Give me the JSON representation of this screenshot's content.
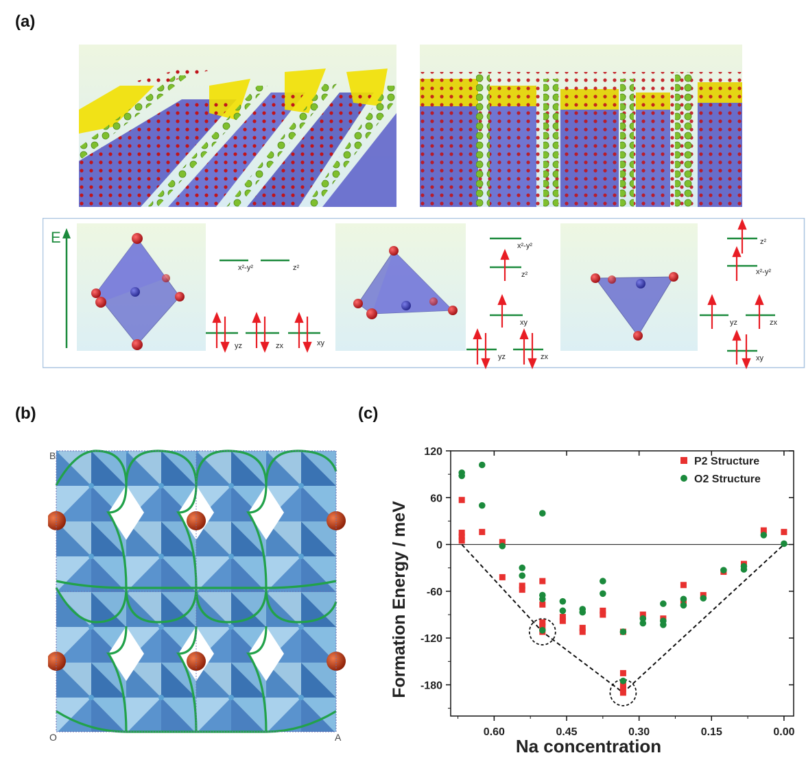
{
  "panels": {
    "a": "(a)",
    "b": "(b)",
    "c": "(c)"
  },
  "energy_diagram": {
    "axis_label": "E",
    "octahedral": [
      "x²-y²",
      "z²",
      "yz",
      "zx",
      "xy"
    ],
    "tetrahedral": [
      "x²-y²",
      "z²",
      "xy",
      "yz",
      "zx"
    ],
    "trigonal": [
      "z²",
      "x²-y²",
      "yz",
      "zx",
      "xy"
    ]
  },
  "lattice": {
    "corner_b": "B",
    "corner_o": "O",
    "corner_a": "A"
  },
  "colors": {
    "p2": "#e8312f",
    "o2": "#1b8a3c",
    "octahedra": "#5b5fc7",
    "yellow": "#f2e000",
    "green_line": "#22a24a",
    "na_ball": "#d0401a"
  },
  "chart_data": {
    "type": "scatter",
    "title": "",
    "xlabel": "Na concentration",
    "ylabel": "Formation Energy / meV",
    "xlim": [
      0.69,
      -0.02
    ],
    "ylim": [
      -220,
      120
    ],
    "xticks": [
      "0.60",
      "0.45",
      "0.30",
      "0.15",
      "0.00"
    ],
    "xtick_values": [
      0.6,
      0.45,
      0.3,
      0.15,
      0.0
    ],
    "yticks": [
      "120",
      "60",
      "0",
      "-60",
      "-120",
      "-180"
    ],
    "ytick_values": [
      120,
      60,
      0,
      -60,
      -120,
      -180
    ],
    "legend": [
      "P2 Structure",
      "O2 Structure"
    ],
    "series": [
      {
        "name": "P2 Structure",
        "points": [
          [
            0.667,
            57
          ],
          [
            0.667,
            15
          ],
          [
            0.667,
            10
          ],
          [
            0.667,
            5
          ],
          [
            0.625,
            16
          ],
          [
            0.583,
            3
          ],
          [
            0.583,
            -42
          ],
          [
            0.542,
            -53
          ],
          [
            0.542,
            -58
          ],
          [
            0.5,
            -47
          ],
          [
            0.5,
            -77
          ],
          [
            0.5,
            -100
          ],
          [
            0.5,
            -105
          ],
          [
            0.5,
            -112
          ],
          [
            0.458,
            -93
          ],
          [
            0.458,
            -98
          ],
          [
            0.417,
            -107
          ],
          [
            0.417,
            -112
          ],
          [
            0.375,
            -85
          ],
          [
            0.375,
            -90
          ],
          [
            0.333,
            -165
          ],
          [
            0.333,
            -180
          ],
          [
            0.333,
            -185
          ],
          [
            0.333,
            -190
          ],
          [
            0.333,
            -112
          ],
          [
            0.292,
            -90
          ],
          [
            0.25,
            -95
          ],
          [
            0.208,
            -52
          ],
          [
            0.208,
            -75
          ],
          [
            0.167,
            -65
          ],
          [
            0.125,
            -35
          ],
          [
            0.083,
            -25
          ],
          [
            0.042,
            18
          ],
          [
            0.0,
            16
          ]
        ]
      },
      {
        "name": "O2 Structure",
        "points": [
          [
            0.667,
            92
          ],
          [
            0.667,
            88
          ],
          [
            0.625,
            102
          ],
          [
            0.625,
            50
          ],
          [
            0.583,
            -2
          ],
          [
            0.542,
            -30
          ],
          [
            0.542,
            -40
          ],
          [
            0.5,
            40
          ],
          [
            0.5,
            -65
          ],
          [
            0.5,
            -70
          ],
          [
            0.5,
            -110
          ],
          [
            0.458,
            -73
          ],
          [
            0.458,
            -85
          ],
          [
            0.417,
            -83
          ],
          [
            0.417,
            -87
          ],
          [
            0.375,
            -47
          ],
          [
            0.375,
            -63
          ],
          [
            0.333,
            -112
          ],
          [
            0.333,
            -175
          ],
          [
            0.292,
            -95
          ],
          [
            0.292,
            -101
          ],
          [
            0.25,
            -76
          ],
          [
            0.25,
            -98
          ],
          [
            0.25,
            -103
          ],
          [
            0.208,
            -70
          ],
          [
            0.208,
            -78
          ],
          [
            0.167,
            -69
          ],
          [
            0.125,
            -33
          ],
          [
            0.083,
            -28
          ],
          [
            0.083,
            -32
          ],
          [
            0.042,
            12
          ],
          [
            0.0,
            1
          ]
        ]
      }
    ],
    "hull": [
      [
        0.667,
        0
      ],
      [
        0.5,
        -112
      ],
      [
        0.333,
        -190
      ],
      [
        0.0,
        0
      ]
    ],
    "circled": [
      [
        0.5,
        -112
      ],
      [
        0.333,
        -190
      ]
    ]
  }
}
